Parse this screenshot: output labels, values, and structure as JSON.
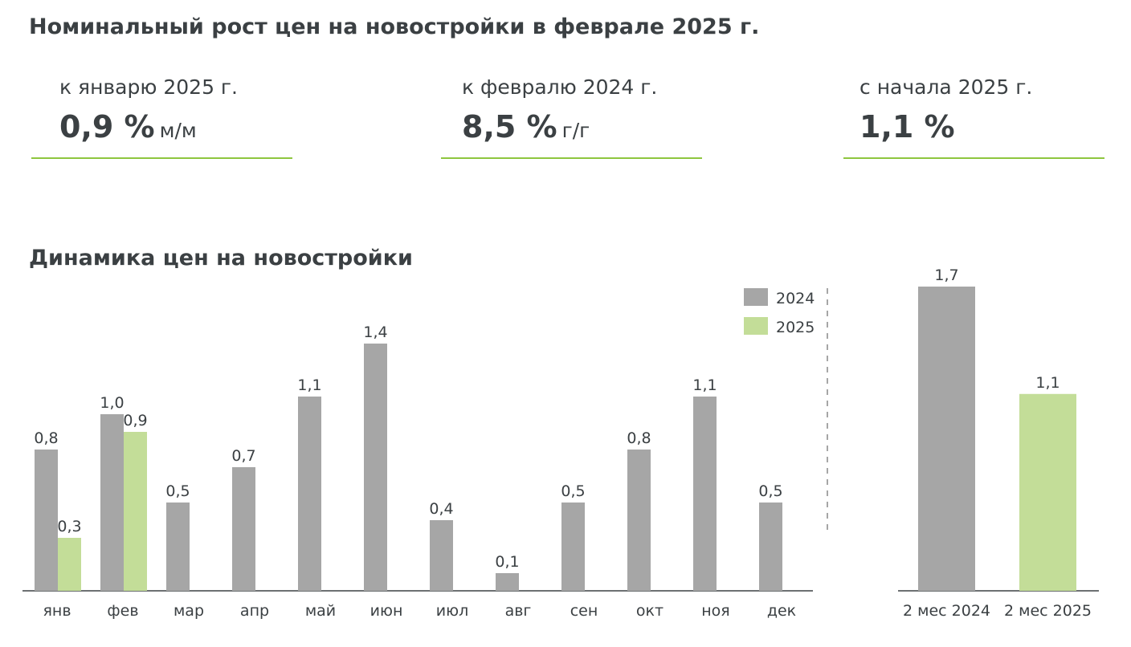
{
  "header": {
    "title": "Номинальный рост цен на новостройки в феврале 2025 г."
  },
  "kpis": [
    {
      "label": "к январю 2025 г.",
      "value": "0,9 %",
      "unit": "м/м"
    },
    {
      "label": "к февралю 2024 г.",
      "value": "8,5 %",
      "unit": "г/г"
    },
    {
      "label": "с начала 2025 г.",
      "value": "1,1 %",
      "unit": ""
    }
  ],
  "section": {
    "title": "Динамика цен на новостройки"
  },
  "colors": {
    "series_2024": "#a6a6a6",
    "series_2025": "#c3dd98",
    "accent_rule": "#8ec63f",
    "axis": "#3b4043",
    "text": "#3b4043",
    "divider": "#a6a6a6"
  },
  "chart_data": [
    {
      "type": "bar",
      "categories": [
        "янв",
        "фев",
        "мар",
        "апр",
        "май",
        "июн",
        "июл",
        "авг",
        "сен",
        "окт",
        "ноя",
        "дек"
      ],
      "series": [
        {
          "name": "2024",
          "values": [
            0.8,
            1.0,
            0.5,
            0.7,
            1.1,
            1.4,
            0.4,
            0.1,
            0.5,
            0.8,
            1.1,
            0.5
          ],
          "labels": [
            "0,8",
            "1,0",
            "0,5",
            "0,7",
            "1,1",
            "1,4",
            "0,4",
            "0,1",
            "0,5",
            "0,8",
            "1,1",
            "0,5"
          ]
        },
        {
          "name": "2025",
          "values": [
            0.3,
            0.9,
            null,
            null,
            null,
            null,
            null,
            null,
            null,
            null,
            null,
            null
          ],
          "labels": [
            "0,3",
            "0,9",
            "",
            "",
            "",
            "",
            "",
            "",
            "",
            "",
            "",
            ""
          ]
        }
      ],
      "title": "Динамика цен на новостройки",
      "ylim": [
        0,
        1.4
      ],
      "grid": false,
      "legend": "top-right"
    },
    {
      "type": "bar",
      "categories": [
        "2 мес 2024",
        "2 мес 2025"
      ],
      "values": [
        1.7,
        1.1
      ],
      "labels": [
        "1,7",
        "1,1"
      ],
      "series_colors": [
        "series_2024",
        "series_2025"
      ],
      "ylim": [
        0,
        1.7
      ],
      "grid": false
    }
  ]
}
